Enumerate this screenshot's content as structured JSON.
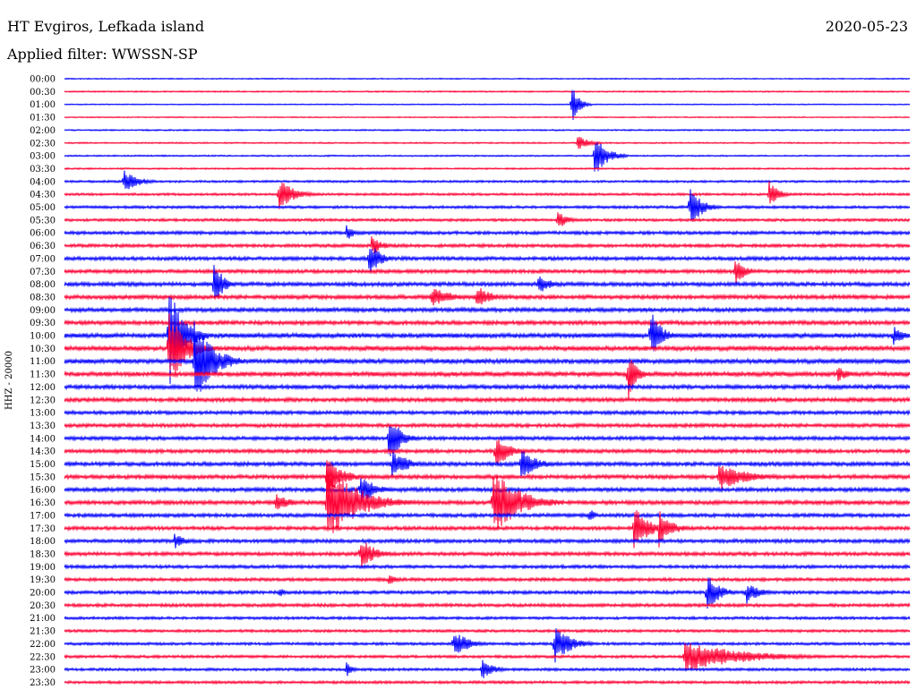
{
  "header": {
    "station": "HT Evgiros, Lefkada island",
    "filter": "Applied filter: WWSSN-SP",
    "date": "2020-05-23"
  },
  "chart_data": {
    "type": "line",
    "title": "",
    "ylabel": "HHZ - 20000",
    "x_range_minutes": [
      0,
      30
    ],
    "colors": [
      "#0000ff",
      "#ff0033"
    ],
    "tick_labels": [
      "00:00",
      "00:30",
      "01:00",
      "01:30",
      "02:00",
      "02:30",
      "03:00",
      "03:30",
      "04:00",
      "04:30",
      "05:00",
      "05:30",
      "06:00",
      "06:30",
      "07:00",
      "07:30",
      "08:00",
      "08:30",
      "09:00",
      "09:30",
      "10:00",
      "10:30",
      "11:00",
      "11:30",
      "12:00",
      "12:30",
      "13:00",
      "13:30",
      "14:00",
      "14:30",
      "15:00",
      "15:30",
      "16:00",
      "16:30",
      "17:00",
      "17:30",
      "18:00",
      "18:30",
      "19:00",
      "19:30",
      "20:00",
      "20:30",
      "21:00",
      "21:30",
      "22:00",
      "22:30",
      "23:00",
      "23:30"
    ],
    "noise_level": [
      0.6,
      0.8,
      0.6,
      0.6,
      0.8,
      0.8,
      0.8,
      0.9,
      1.2,
      1.3,
      1.5,
      1.5,
      1.8,
      1.8,
      2.0,
      2.0,
      2.2,
      2.2,
      2.2,
      2.2,
      2.5,
      2.5,
      2.5,
      2.5,
      2.2,
      2.2,
      2.0,
      2.0,
      2.0,
      2.0,
      2.2,
      2.2,
      2.2,
      2.2,
      2.0,
      2.0,
      2.0,
      2.0,
      1.8,
      1.8,
      1.8,
      1.8,
      1.5,
      1.5,
      1.5,
      1.5,
      1.5,
      1.5
    ],
    "events": [
      {
        "trace": 2,
        "minute": 18.0,
        "amplitude": 22,
        "duration": 0.7
      },
      {
        "trace": 5,
        "minute": 18.2,
        "amplitude": 10,
        "duration": 1.0
      },
      {
        "trace": 6,
        "minute": 18.8,
        "amplitude": 24,
        "duration": 1.2
      },
      {
        "trace": 8,
        "minute": 2.1,
        "amplitude": 13,
        "duration": 1.4
      },
      {
        "trace": 9,
        "minute": 7.6,
        "amplitude": 18,
        "duration": 1.5
      },
      {
        "trace": 9,
        "minute": 25.0,
        "amplitude": 16,
        "duration": 0.9
      },
      {
        "trace": 10,
        "minute": 22.2,
        "amplitude": 24,
        "duration": 1.1
      },
      {
        "trace": 11,
        "minute": 17.5,
        "amplitude": 12,
        "duration": 0.9
      },
      {
        "trace": 12,
        "minute": 10.0,
        "amplitude": 10,
        "duration": 0.8
      },
      {
        "trace": 13,
        "minute": 10.9,
        "amplitude": 12,
        "duration": 1.0
      },
      {
        "trace": 14,
        "minute": 10.8,
        "amplitude": 22,
        "duration": 1.0
      },
      {
        "trace": 15,
        "minute": 23.8,
        "amplitude": 16,
        "duration": 1.0
      },
      {
        "trace": 16,
        "minute": 5.3,
        "amplitude": 30,
        "duration": 0.8
      },
      {
        "trace": 16,
        "minute": 16.8,
        "amplitude": 12,
        "duration": 1.2
      },
      {
        "trace": 17,
        "minute": 13.0,
        "amplitude": 12,
        "duration": 2.2
      },
      {
        "trace": 17,
        "minute": 14.6,
        "amplitude": 14,
        "duration": 1.5
      },
      {
        "trace": 20,
        "minute": 3.7,
        "amplitude": 60,
        "duration": 1.4
      },
      {
        "trace": 20,
        "minute": 20.8,
        "amplitude": 30,
        "duration": 1.0
      },
      {
        "trace": 20,
        "minute": 29.4,
        "amplitude": 12,
        "duration": 1.0
      },
      {
        "trace": 21,
        "minute": 3.7,
        "amplitude": 45,
        "duration": 1.6
      },
      {
        "trace": 22,
        "minute": 4.6,
        "amplitude": 50,
        "duration": 1.8
      },
      {
        "trace": 23,
        "minute": 27.4,
        "amplitude": 10,
        "duration": 1.0
      },
      {
        "trace": 23,
        "minute": 20.0,
        "amplitude": 30,
        "duration": 0.8
      },
      {
        "trace": 28,
        "minute": 11.5,
        "amplitude": 28,
        "duration": 1.2
      },
      {
        "trace": 29,
        "minute": 15.3,
        "amplitude": 22,
        "duration": 1.2
      },
      {
        "trace": 30,
        "minute": 11.6,
        "amplitude": 18,
        "duration": 1.5
      },
      {
        "trace": 30,
        "minute": 16.2,
        "amplitude": 20,
        "duration": 1.4
      },
      {
        "trace": 31,
        "minute": 9.3,
        "amplitude": 22,
        "duration": 1.6
      },
      {
        "trace": 31,
        "minute": 23.2,
        "amplitude": 16,
        "duration": 2.8
      },
      {
        "trace": 32,
        "minute": 10.5,
        "amplitude": 18,
        "duration": 1.4
      },
      {
        "trace": 33,
        "minute": 9.3,
        "amplitude": 45,
        "duration": 3.0
      },
      {
        "trace": 33,
        "minute": 15.2,
        "amplitude": 40,
        "duration": 2.5
      },
      {
        "trace": 33,
        "minute": 7.5,
        "amplitude": 12,
        "duration": 1.2
      },
      {
        "trace": 34,
        "minute": 18.6,
        "amplitude": 10,
        "duration": 0.6
      },
      {
        "trace": 35,
        "minute": 20.2,
        "amplitude": 25,
        "duration": 1.5
      },
      {
        "trace": 35,
        "minute": 21.1,
        "amplitude": 22,
        "duration": 1.2
      },
      {
        "trace": 36,
        "minute": 3.9,
        "amplitude": 10,
        "duration": 1.0
      },
      {
        "trace": 37,
        "minute": 10.5,
        "amplitude": 20,
        "duration": 1.4
      },
      {
        "trace": 39,
        "minute": 11.5,
        "amplitude": 6,
        "duration": 1.0
      },
      {
        "trace": 40,
        "minute": 22.8,
        "amplitude": 22,
        "duration": 1.2
      },
      {
        "trace": 40,
        "minute": 24.2,
        "amplitude": 14,
        "duration": 1.2
      },
      {
        "trace": 40,
        "minute": 7.6,
        "amplitude": 6,
        "duration": 0.8
      },
      {
        "trace": 44,
        "minute": 13.8,
        "amplitude": 16,
        "duration": 1.5
      },
      {
        "trace": 44,
        "minute": 17.4,
        "amplitude": 22,
        "duration": 1.5
      },
      {
        "trace": 45,
        "minute": 22.0,
        "amplitude": 18,
        "duration": 5.5
      },
      {
        "trace": 46,
        "minute": 14.8,
        "amplitude": 12,
        "duration": 1.2
      },
      {
        "trace": 46,
        "minute": 10.0,
        "amplitude": 10,
        "duration": 0.6
      }
    ]
  }
}
